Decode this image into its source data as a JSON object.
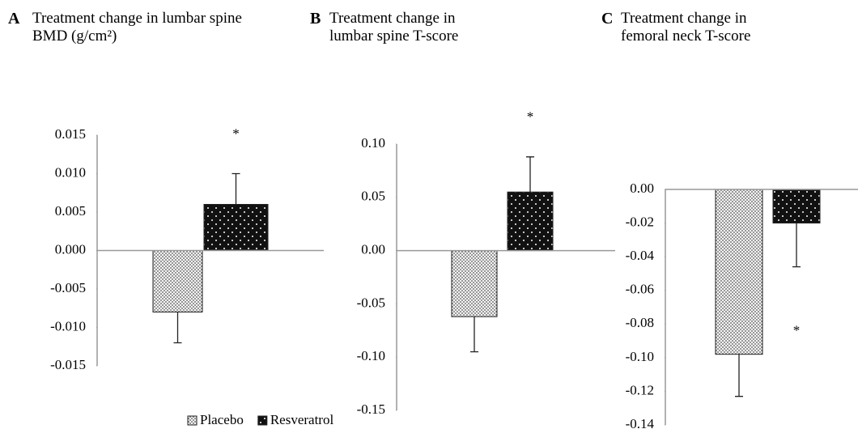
{
  "chart_data": [
    {
      "type": "bar",
      "panel": "A",
      "title": "Treatment change in lumbar spine BMD (g/cm²)",
      "ylim": [
        -0.015,
        0.015
      ],
      "yticks": [
        {
          "value": 0.015,
          "label": "0.015"
        },
        {
          "value": 0.01,
          "label": "0.010"
        },
        {
          "value": 0.005,
          "label": "0.005"
        },
        {
          "value": 0,
          "label": "0.000"
        },
        {
          "value": -0.005,
          "label": "-0.005"
        },
        {
          "value": -0.01,
          "label": "-0.010"
        },
        {
          "value": -0.015,
          "label": "-0.015"
        }
      ],
      "series": [
        {
          "name": "Placebo",
          "color": "#dcdcdc",
          "values": [
            -0.008
          ],
          "errors": [
            0.004
          ]
        },
        {
          "name": "Resveratrol",
          "color": "#111111",
          "values": [
            0.006
          ],
          "errors": [
            0.004
          ]
        }
      ],
      "annotation": "*"
    },
    {
      "type": "bar",
      "panel": "B",
      "title": "Treatment change in lumbar spine T-score",
      "ylim": [
        -0.15,
        0.1
      ],
      "yticks": [
        {
          "value": 0.1,
          "label": "0.10"
        },
        {
          "value": 0.05,
          "label": "0.05"
        },
        {
          "value": 0,
          "label": "0.00"
        },
        {
          "value": -0.05,
          "label": "-0.05"
        },
        {
          "value": -0.1,
          "label": "-0.10"
        },
        {
          "value": -0.15,
          "label": "-0.15"
        }
      ],
      "series": [
        {
          "color": "#dcdcdc",
          "values": [
            -0.062
          ],
          "errors": [
            0.033
          ]
        },
        {
          "color": "#111111",
          "values": [
            0.055
          ],
          "errors": [
            0.033
          ]
        }
      ],
      "annotation": "*"
    },
    {
      "type": "bar",
      "panel": "C",
      "title": "Treatment change in femoral neck T-score",
      "ylim": [
        -0.14,
        0
      ],
      "yticks": [
        {
          "value": 0,
          "label": "0.00"
        },
        {
          "value": -0.02,
          "label": "-0.02"
        },
        {
          "value": -0.04,
          "label": "-0.04"
        },
        {
          "value": -0.06,
          "label": "-0.06"
        },
        {
          "value": -0.08,
          "label": "-0.08"
        },
        {
          "value": -0.1,
          "label": "-0.10"
        },
        {
          "value": -0.12,
          "label": "-0.12"
        },
        {
          "value": -0.14,
          "label": "-0.14"
        }
      ],
      "series": [
        {
          "color": "#dcdcdc",
          "values": [
            -0.098
          ],
          "errors": [
            0.025
          ]
        },
        {
          "color": "#111111",
          "values": [
            -0.02
          ],
          "errors": [
            0.026
          ]
        }
      ],
      "annotation": "*"
    }
  ]
}
